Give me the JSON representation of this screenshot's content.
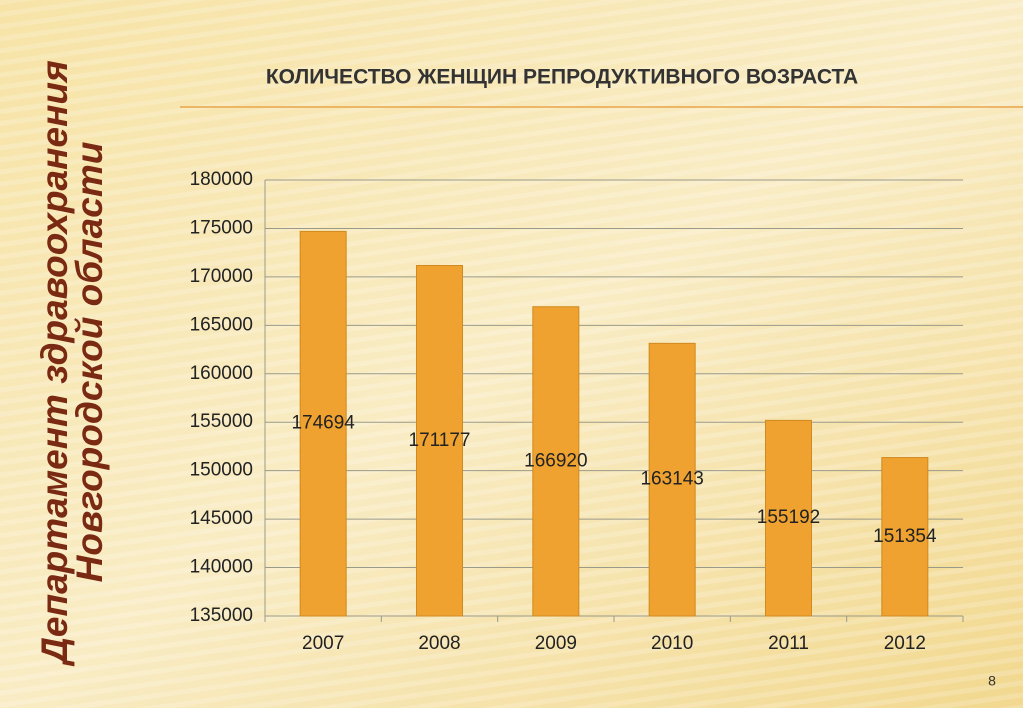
{
  "chart_data": {
    "type": "bar",
    "title": "КОЛИЧЕСТВО ЖЕНЩИН РЕПРОДУКТИВНОГО ВОЗРАСТА",
    "categories": [
      "2007",
      "2008",
      "2009",
      "2010",
      "2011",
      "2012"
    ],
    "values": [
      174694,
      171177,
      166920,
      163143,
      155192,
      151354
    ],
    "color": "#efa22f",
    "ylim": [
      135000,
      180000
    ],
    "yticks": [
      135000,
      140000,
      145000,
      150000,
      155000,
      160000,
      165000,
      170000,
      175000,
      180000
    ],
    "grid": true
  },
  "sidebar": {
    "line1": "Департамент здравоохранения",
    "line2": "Новгородской области"
  },
  "page_number": "8"
}
